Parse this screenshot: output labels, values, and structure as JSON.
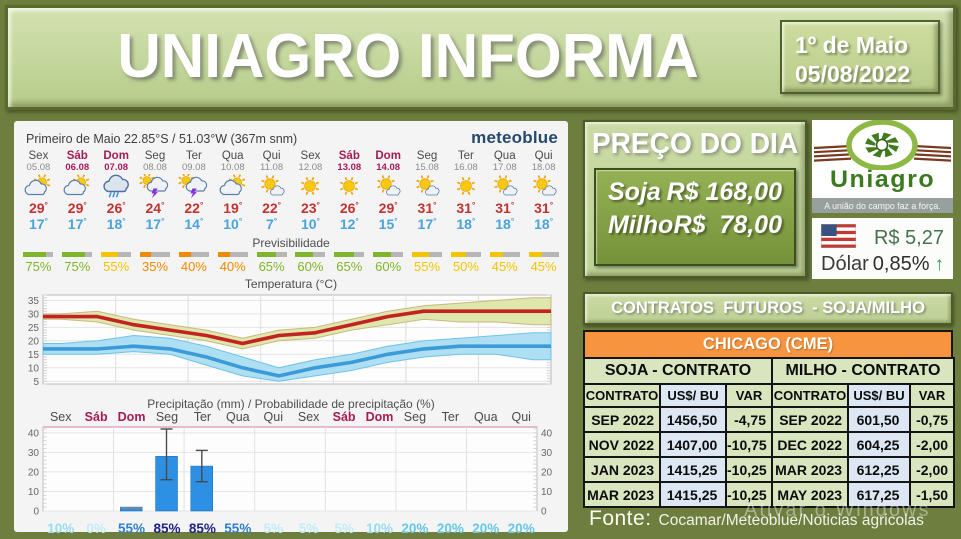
{
  "header": {
    "title": "UNIAGRO INFORMA",
    "date_line1": "1º de Maio",
    "date_line2": "05/08/2022"
  },
  "weather": {
    "location": "Primeiro de Maio  22.85°S / 51.03°W (367m snm)",
    "brand": "meteoblue",
    "predictability_label": "Previsibilidade",
    "days": [
      {
        "name": "Sex",
        "date": "05.08",
        "weekend": false,
        "icon": "sun-cloud",
        "tmax": "29",
        "tmin": "17",
        "predictability": 75
      },
      {
        "name": "Sáb",
        "date": "06.08",
        "weekend": true,
        "icon": "sun-cloud",
        "tmax": "29",
        "tmin": "17",
        "predictability": 75
      },
      {
        "name": "Dom",
        "date": "07.08",
        "weekend": true,
        "icon": "rain",
        "tmax": "26",
        "tmin": "18",
        "predictability": 55
      },
      {
        "name": "Seg",
        "date": "08.08",
        "weekend": false,
        "icon": "thunder",
        "tmax": "24",
        "tmin": "17",
        "predictability": 35
      },
      {
        "name": "Ter",
        "date": "09.08",
        "weekend": false,
        "icon": "thunder",
        "tmax": "22",
        "tmin": "14",
        "predictability": 40
      },
      {
        "name": "Qua",
        "date": "10.08",
        "weekend": false,
        "icon": "sun-cloud",
        "tmax": "19",
        "tmin": "10",
        "predictability": 40
      },
      {
        "name": "Qui",
        "date": "11.08",
        "weekend": false,
        "icon": "sun-small-cloud",
        "tmax": "22",
        "tmin": "7",
        "predictability": 65
      },
      {
        "name": "Sex",
        "date": "12.08",
        "weekend": false,
        "icon": "sunny",
        "tmax": "23",
        "tmin": "10",
        "predictability": 60
      },
      {
        "name": "Sáb",
        "date": "13.08",
        "weekend": true,
        "icon": "sunny",
        "tmax": "26",
        "tmin": "12",
        "predictability": 65
      },
      {
        "name": "Dom",
        "date": "14.08",
        "weekend": true,
        "icon": "sun-small-cloud",
        "tmax": "29",
        "tmin": "15",
        "predictability": 60
      },
      {
        "name": "Seg",
        "date": "15.08",
        "weekend": false,
        "icon": "sun-small-cloud",
        "tmax": "31",
        "tmin": "17",
        "predictability": 55
      },
      {
        "name": "Ter",
        "date": "16.08",
        "weekend": false,
        "icon": "sunny",
        "tmax": "31",
        "tmin": "18",
        "predictability": 50
      },
      {
        "name": "Qua",
        "date": "17.08",
        "weekend": false,
        "icon": "sun-small-cloud",
        "tmax": "31",
        "tmin": "18",
        "predictability": 45
      },
      {
        "name": "Qui",
        "date": "18.08",
        "weekend": false,
        "icon": "sun-small-cloud",
        "tmax": "31",
        "tmin": "18",
        "predictability": 45
      }
    ]
  },
  "chart_data": [
    {
      "type": "line",
      "title": "Temperatura (°C)",
      "ylim": [
        4,
        37
      ],
      "yticks": [
        5,
        10,
        15,
        20,
        25,
        30,
        35
      ],
      "grid": true,
      "series": [
        {
          "name": "temperatura-maxima",
          "color": "#c32222",
          "band_color": "#dce6a3",
          "band_edge": "#c9b97e",
          "values": [
            29,
            29,
            26,
            24,
            22,
            19,
            22,
            23,
            26,
            29,
            31,
            31,
            31,
            31
          ],
          "band_upper": [
            30,
            31,
            28,
            26,
            24,
            21,
            24,
            25,
            28,
            31,
            33,
            34,
            35,
            36
          ],
          "band_lower": [
            28,
            27,
            24,
            22,
            20,
            17,
            20,
            21,
            24,
            26,
            28,
            27,
            27,
            26
          ]
        },
        {
          "name": "temperatura-minima",
          "color": "#3b9bd8",
          "band_color": "#a6dcf2",
          "band_edge": "#6fc2e8",
          "values": [
            17,
            17,
            18,
            17,
            14,
            10,
            7,
            10,
            12,
            15,
            17,
            18,
            18,
            18
          ],
          "band_upper": [
            19,
            20,
            22,
            21,
            18,
            14,
            10,
            13,
            15,
            18,
            20,
            21,
            22,
            23
          ],
          "band_lower": [
            15,
            15,
            16,
            15,
            11,
            7,
            5,
            7,
            9,
            12,
            14,
            15,
            15,
            13
          ]
        }
      ]
    },
    {
      "type": "bar",
      "title": "Precipitação (mm) / Probabilidade de precipitação (%)",
      "ylim": [
        0,
        43
      ],
      "yticks": [
        0,
        10,
        20,
        30,
        40
      ],
      "bar_color": "#2e90e2",
      "categories": [
        "Sex",
        "Sáb",
        "Dom",
        "Seg",
        "Ter",
        "Qua",
        "Qui",
        "Sex",
        "Sáb",
        "Dom",
        "Seg",
        "Ter",
        "Qua",
        "Qui"
      ],
      "values": [
        0,
        0,
        2,
        28,
        23,
        0,
        0,
        0,
        0,
        0,
        0,
        0,
        0,
        0
      ],
      "gray_caps": [
        0,
        0,
        0.8,
        0,
        0,
        0,
        0,
        0,
        0,
        0,
        0,
        0,
        0,
        0
      ],
      "whisker_low": [
        null,
        null,
        null,
        16,
        15,
        null,
        null,
        null,
        null,
        null,
        null,
        null,
        null,
        null
      ],
      "whisker_high": [
        null,
        null,
        null,
        42,
        31,
        null,
        null,
        null,
        null,
        null,
        null,
        null,
        null,
        null
      ],
      "probabilities": [
        10,
        0,
        55,
        85,
        85,
        55,
        5,
        5,
        5,
        10,
        20,
        20,
        20,
        20
      ]
    }
  ],
  "price_of_day": {
    "title": "PREÇO DO DIA",
    "items": [
      {
        "name": "Soja",
        "price": "R$ 168,00"
      },
      {
        "name": "Milho",
        "price": "R$  78,00"
      }
    ]
  },
  "uniagro": {
    "brand": "Uniagro",
    "tagline": "A união do campo faz a força."
  },
  "dollar": {
    "value": "R$ 5,27",
    "label": "Dólar",
    "change": "0,85%",
    "direction": "up"
  },
  "contracts": {
    "header": "CONTRATOS  FUTUROS  - SOJA/MILHO",
    "exchange": "CHICAGO (CME)",
    "groups": [
      "SOJA - CONTRATO",
      "MILHO - CONTRATO"
    ],
    "columns": [
      "CONTRATO",
      "US$/ BU",
      "VAR"
    ],
    "soja_rows": [
      [
        "SEP 2022",
        "1456,50",
        "-4,75"
      ],
      [
        "NOV 2022",
        "1407,00",
        "-10,75"
      ],
      [
        "JAN 2023",
        "1415,25",
        "-10,25"
      ],
      [
        "MAR 2023",
        "1415,25",
        "-10,25"
      ]
    ],
    "milho_rows": [
      [
        "SEP 2022",
        "601,50",
        "-0,75"
      ],
      [
        "DEC 2022",
        "604,25",
        "-2,00"
      ],
      [
        "MAR 2023",
        "612,25",
        "-2,00"
      ],
      [
        "MAY 2023",
        "617,25",
        "-1,50"
      ]
    ]
  },
  "fonte": {
    "label": "Fonte:",
    "text": "Cocamar/Meteoblue/Noticias agricolas"
  },
  "watermark": "Ativar o Windows",
  "colors": {
    "page_bg": "#6d7e3e",
    "panel_green": "#c3d69b",
    "deep_green_border": "#4f6228",
    "orange_header": "#f69440",
    "table_green": "#d9e5bf",
    "table_blue": "#dce7f3",
    "weekend_red": "#a81a55",
    "temp_max_red": "#c32222",
    "temp_min_blue": "#3b9bd8",
    "precip_bar_blue": "#2e90e2",
    "dollar_green": "#44724a",
    "arrow_green": "#21a24b"
  }
}
